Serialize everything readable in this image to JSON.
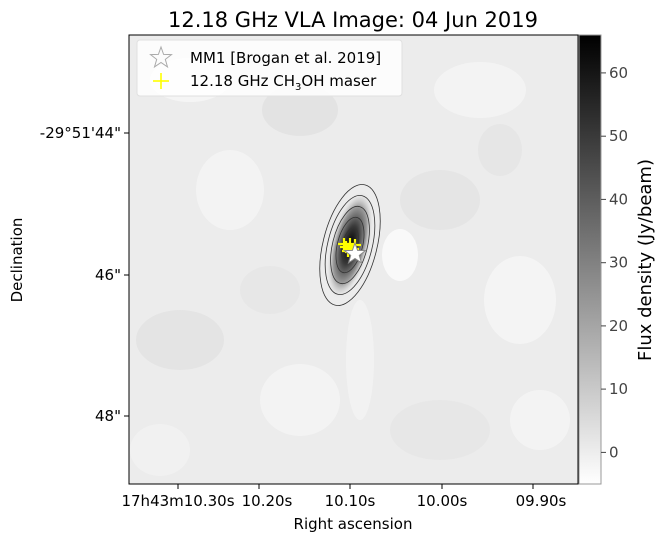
{
  "chart_data": {
    "type": "heatmap",
    "title": "12.18 GHz VLA Image: 04 Jun 2019",
    "xlabel": "Right ascension",
    "ylabel": "Declination",
    "x_ticks": [
      "17h43m10.30s",
      "10.20s",
      "10.10s",
      "10.00s",
      "09.90s"
    ],
    "y_ticks": [
      "-29°51'44\"",
      "46\"",
      "48\""
    ],
    "colorbar": {
      "label": "Flux density (Jy/beam)",
      "ticks": [
        0,
        10,
        20,
        30,
        40,
        50,
        60
      ],
      "range": [
        -5,
        66
      ],
      "colormap": "gray_r"
    },
    "source": {
      "ra_offset_arcsec": 0.0,
      "dec_offset_arcsec": -0.35,
      "peak_jy_beam": 66
    },
    "contour_count": 5,
    "legend": {
      "placement": "top-left",
      "entries": [
        {
          "label": "MM1 [Brogan et al. 2019]",
          "marker": "star-outline",
          "color": "#aaaaaa"
        },
        {
          "label_main": "12.18 GHz CH",
          "label_sub": "3",
          "label_end": "OH maser",
          "marker": "plus",
          "color": "#ffff00"
        }
      ]
    }
  },
  "colors": {
    "maser": "#ffff00",
    "contour": "#333333",
    "star_fill": "#ffffff",
    "star_stroke": "#888888"
  }
}
